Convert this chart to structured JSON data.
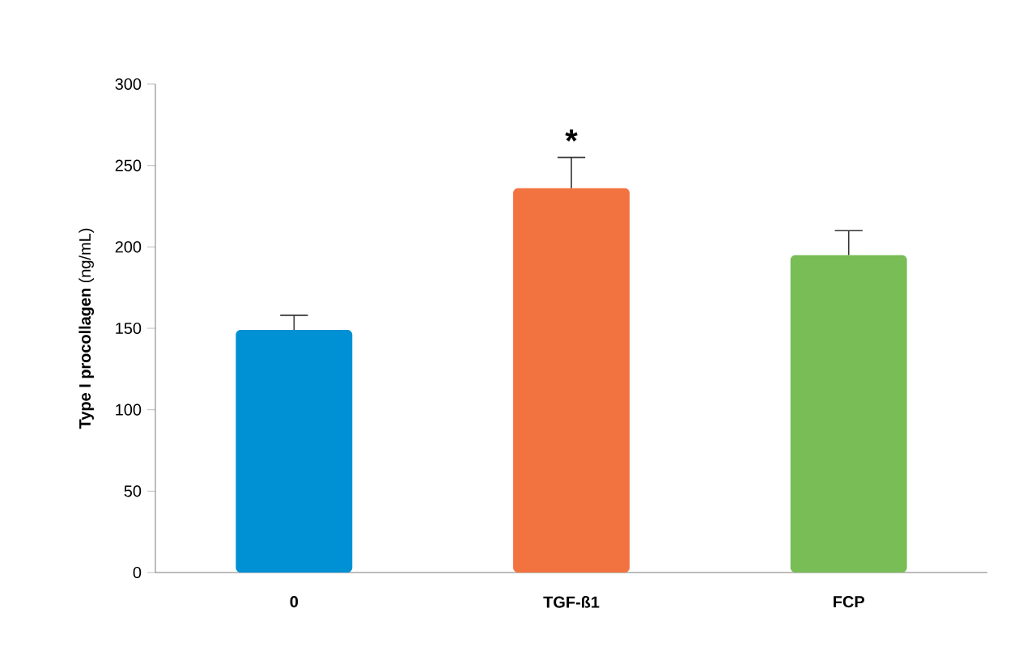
{
  "chart_data": {
    "type": "bar",
    "ylabel": "**Type I procollagen** (ng/mL)",
    "categories": [
      "0",
      "TGF-ß1",
      "FCP"
    ],
    "values": [
      149,
      236,
      195
    ],
    "colors": [
      "#0090d4",
      "#f37340",
      "#79bd56"
    ],
    "errors": [
      [
        149,
        158
      ],
      [
        236,
        255
      ],
      [
        195,
        210
      ]
    ],
    "ylim": [
      0,
      300
    ],
    "yticks": [
      0,
      50,
      100,
      150,
      200,
      250,
      300
    ],
    "annotations": [
      "*"
    ],
    "grid": false
  }
}
